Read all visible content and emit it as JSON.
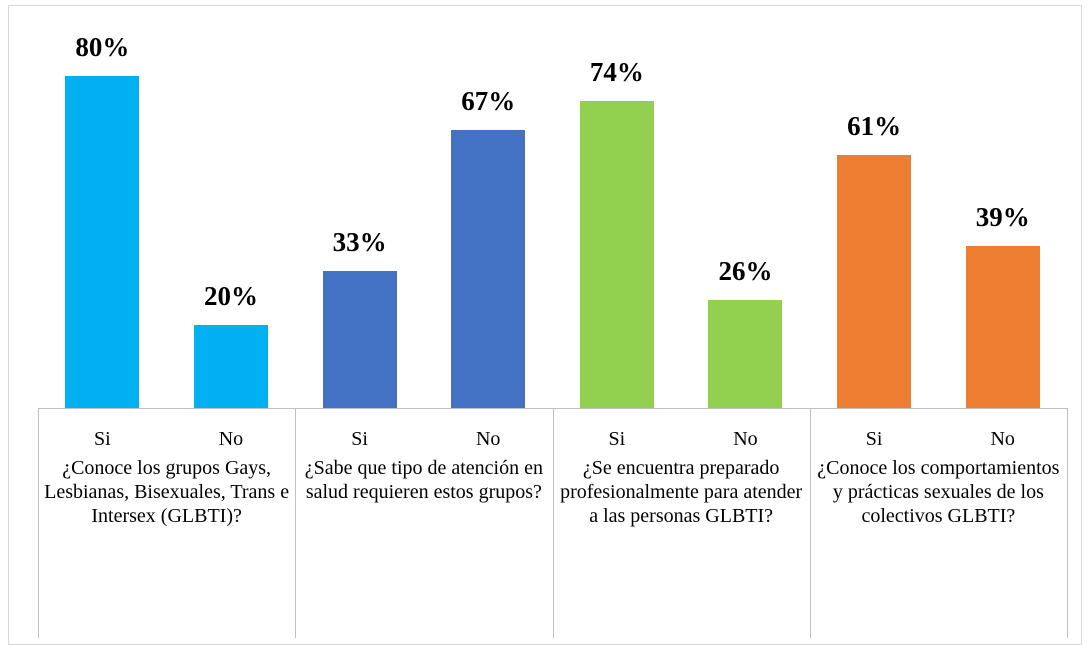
{
  "chart_data": {
    "type": "bar",
    "groups": [
      {
        "name": "¿Conoce los grupos Gays, Lesbianas, Bisexuales, Trans e Intersex (GLBTI)?",
        "color": "#00b0f0",
        "categories": [
          "Si",
          "No"
        ],
        "values": [
          80,
          20
        ],
        "value_labels": [
          "80%",
          "20%"
        ]
      },
      {
        "name": "¿Sabe que tipo de atención en salud requieren estos grupos?",
        "color": "#4472c4",
        "categories": [
          "Si",
          "No"
        ],
        "values": [
          33,
          67
        ],
        "value_labels": [
          "33%",
          "67%"
        ]
      },
      {
        "name": "¿Se encuentra preparado profesionalmente para atender a las personas GLBTI?",
        "color": "#92d050",
        "categories": [
          "Si",
          "No"
        ],
        "values": [
          74,
          26
        ],
        "value_labels": [
          "74%",
          "26%"
        ]
      },
      {
        "name": "¿Conoce los comportamientos y prácticas sexuales de los colectivos GLBTI?",
        "color": "#ed7d31",
        "categories": [
          "Si",
          "No"
        ],
        "values": [
          61,
          39
        ],
        "value_labels": [
          "61%",
          "39%"
        ]
      }
    ],
    "ylim": [
      0,
      80
    ]
  }
}
